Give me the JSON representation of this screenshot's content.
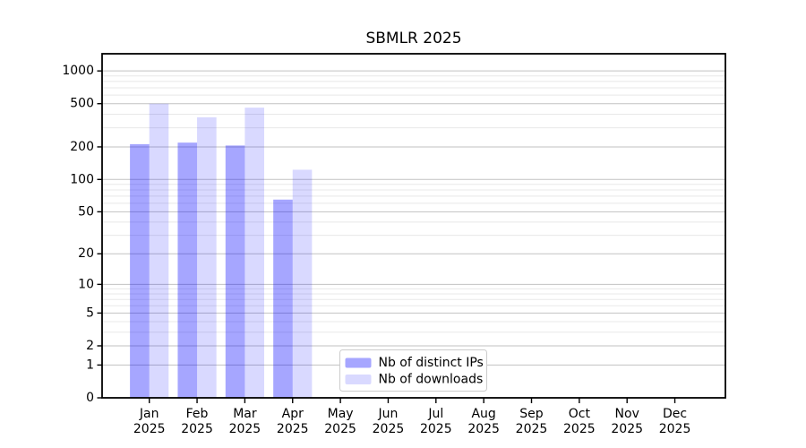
{
  "chart_data": {
    "type": "bar",
    "title": "SBMLR 2025",
    "categories": [
      "Jan",
      "Feb",
      "Mar",
      "Apr",
      "May",
      "Jun",
      "Jul",
      "Aug",
      "Sep",
      "Oct",
      "Nov",
      "Dec"
    ],
    "x_year_label": "2025",
    "series": [
      {
        "name": "Nb of distinct IPs",
        "color": "#0000ff",
        "alpha": 0.35,
        "values": [
          212,
          219,
          206,
          65,
          null,
          null,
          null,
          null,
          null,
          null,
          null,
          null
        ]
      },
      {
        "name": "Nb of downloads",
        "color": "#0000ff",
        "alpha": 0.15,
        "values": [
          500,
          375,
          460,
          123,
          null,
          null,
          null,
          null,
          null,
          null,
          null,
          null
        ]
      }
    ],
    "yscale": "log1p",
    "yticks": [
      0,
      1,
      2,
      5,
      10,
      20,
      50,
      100,
      200,
      500,
      1000
    ],
    "ylim": [
      0,
      1438
    ],
    "grid": true,
    "legend": {
      "position": "lower center",
      "labels": [
        "Nb of distinct IPs",
        "Nb of downloads"
      ]
    }
  },
  "colors": {
    "background": "#ffffff",
    "axis": "#000000",
    "text": "#000000",
    "grid_major": "#c2c2c2",
    "grid_minor": "#e8e8e8",
    "legend_border": "#cccccc",
    "legend_fill": "#ffffff"
  }
}
